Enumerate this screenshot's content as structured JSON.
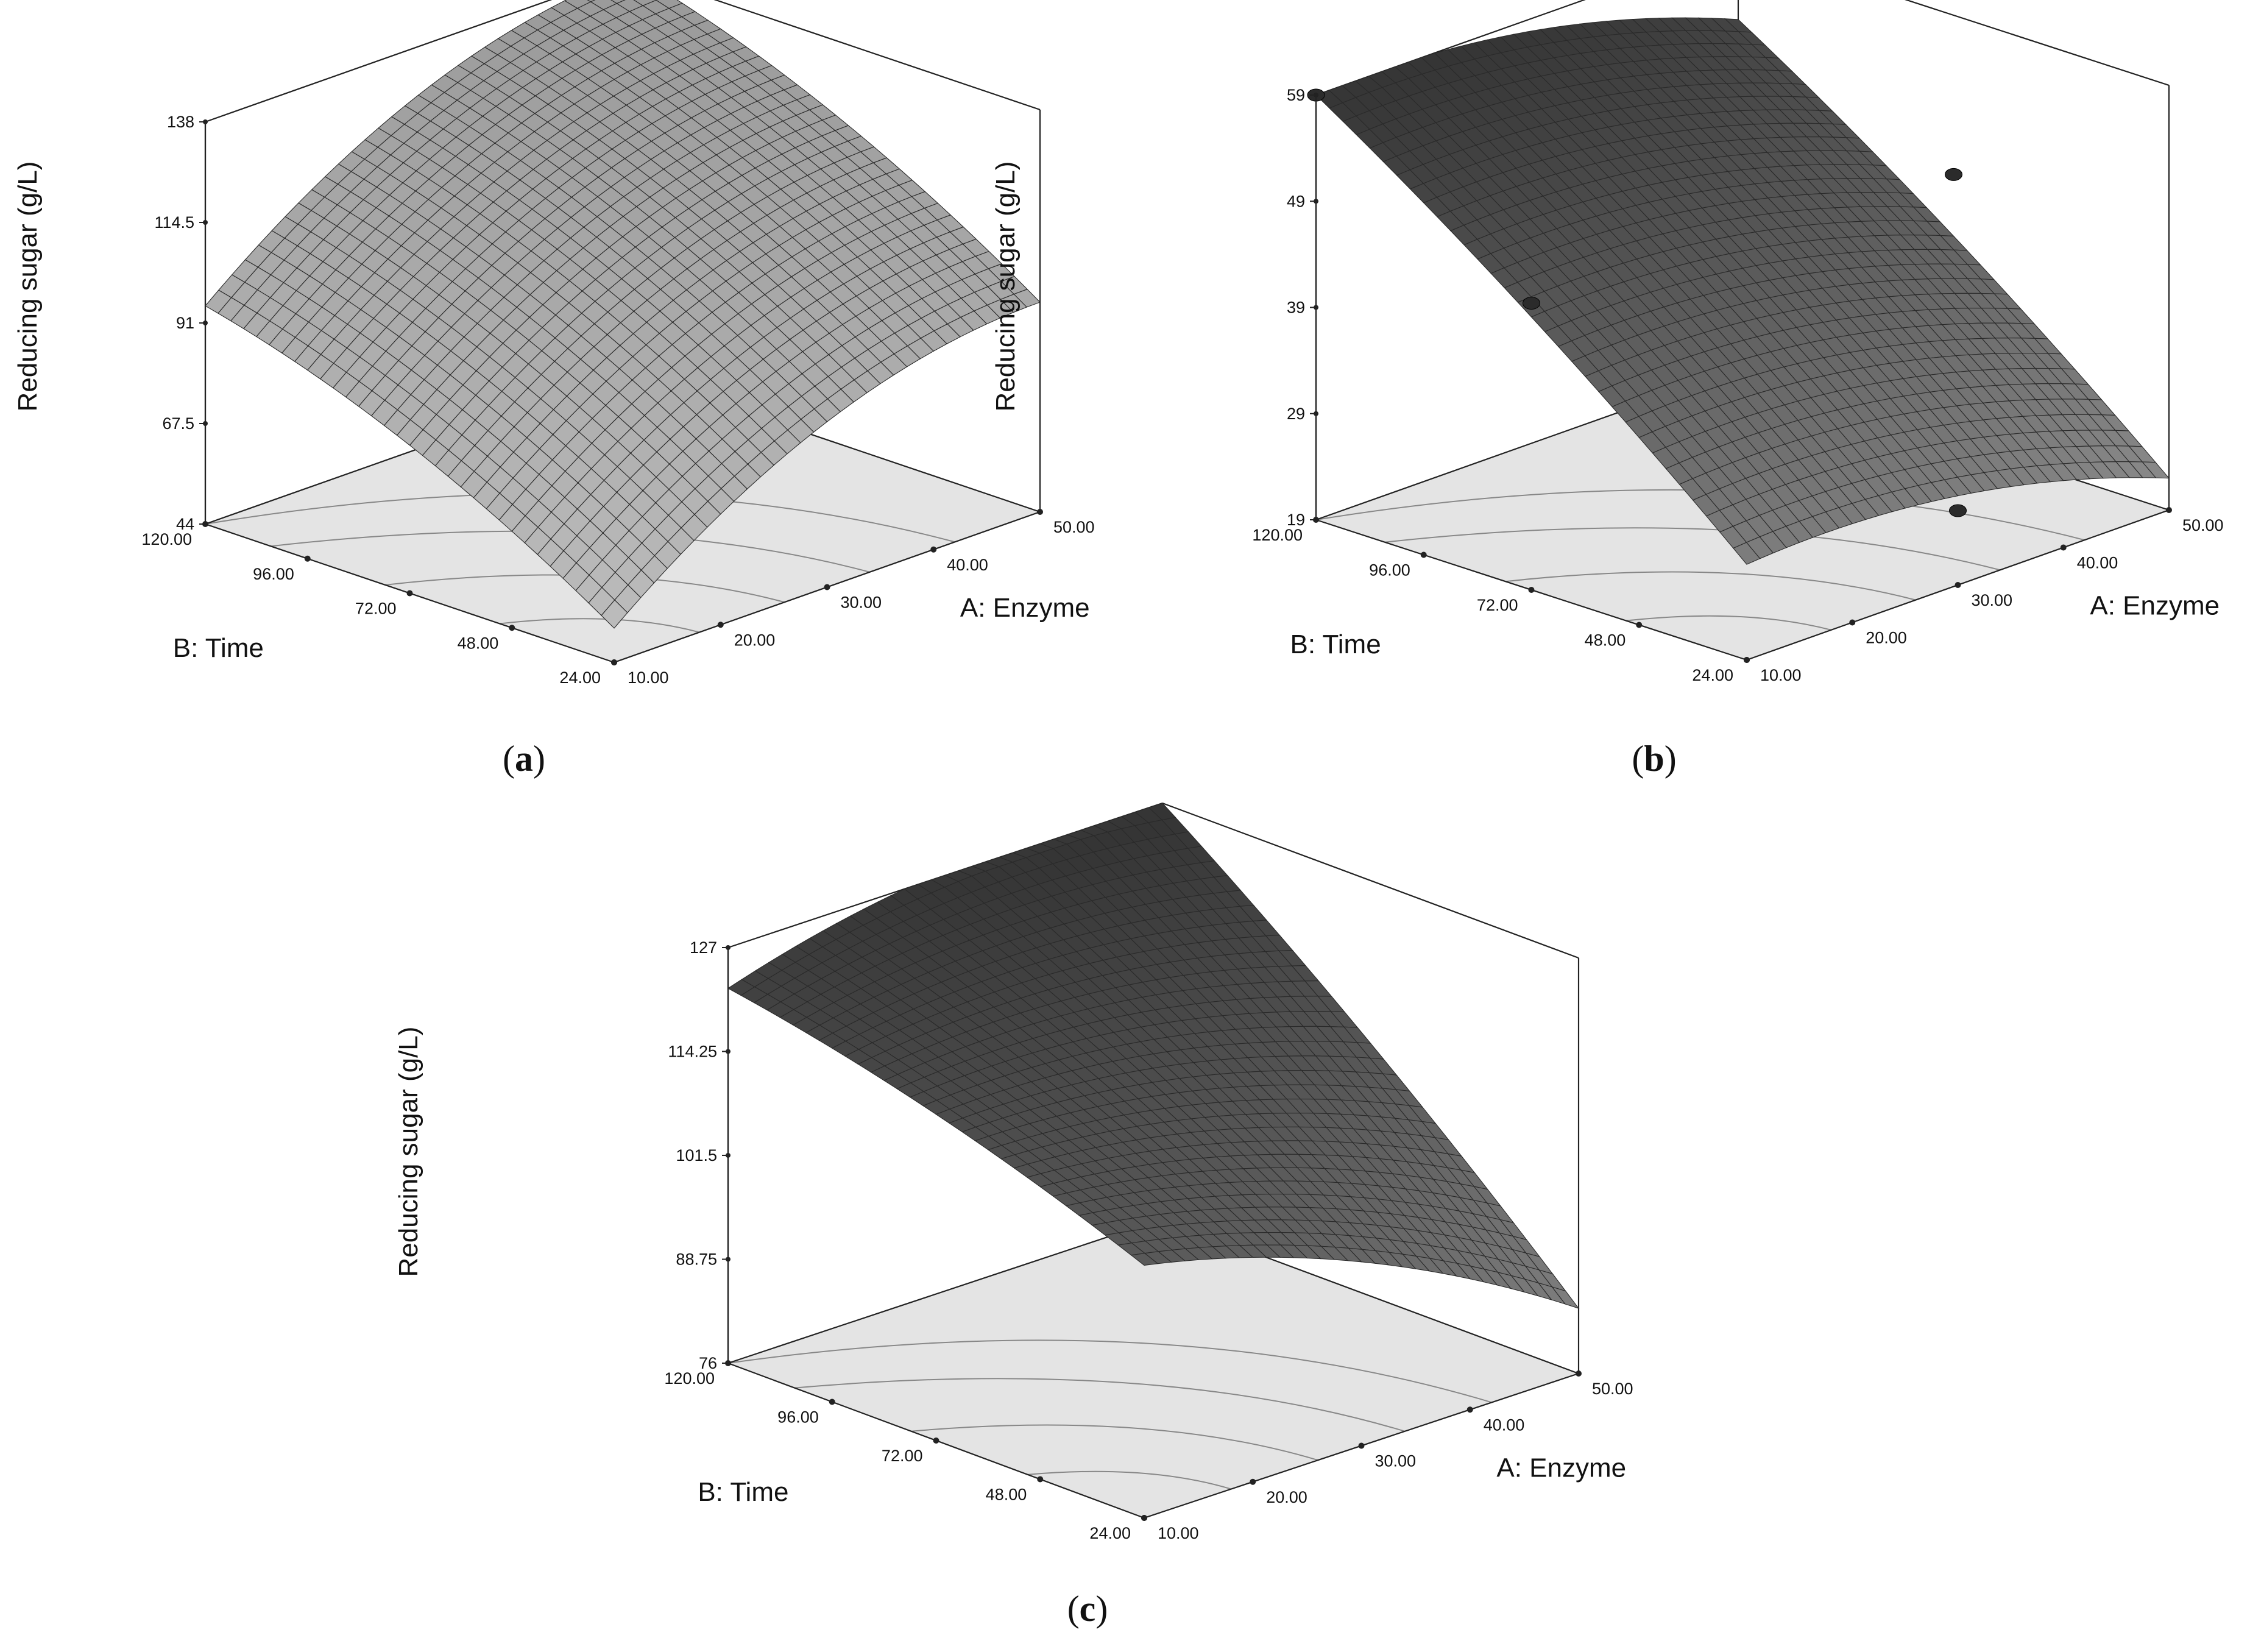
{
  "chart_data": [
    {
      "type": "surface3d",
      "panel_label": "a",
      "zlabel": "Reducing sugar (g/L)",
      "xlabel": "A: Enzyme",
      "ylabel": "B: Time",
      "x_ticks": [
        "10.00",
        "20.00",
        "30.00",
        "40.00",
        "50.00"
      ],
      "y_ticks": [
        "24.00",
        "48.00",
        "72.00",
        "96.00",
        "120.00"
      ],
      "z_ticks": [
        "44",
        "67.5",
        "91",
        "114.5",
        "138"
      ],
      "xlim": [
        10,
        50
      ],
      "ylim": [
        24,
        120
      ],
      "zlim": [
        44,
        138
      ],
      "surface_corners": {
        "x10_y24": 52,
        "x50_y24": 93,
        "x10_y120": 95,
        "x50_y120": 138
      },
      "surface_shade": "light",
      "design_points": []
    },
    {
      "type": "surface3d",
      "panel_label": "b",
      "zlabel": "Reducing sugar (g/L)",
      "xlabel": "A: Enzyme",
      "ylabel": "B: Time",
      "x_ticks": [
        "10.00",
        "20.00",
        "30.00",
        "40.00",
        "50.00"
      ],
      "y_ticks": [
        "24.00",
        "48.00",
        "72.00",
        "96.00",
        "120.00"
      ],
      "z_ticks": [
        "19",
        "29",
        "39",
        "49",
        "59"
      ],
      "xlim": [
        10,
        50
      ],
      "ylim": [
        24,
        120
      ],
      "zlim": [
        19,
        59
      ],
      "surface_corners": {
        "x10_y24": 28,
        "x50_y24": 22,
        "x10_y120": 59,
        "x50_y120": 52
      },
      "surface_shade": "dark",
      "design_points": [
        {
          "x": 10,
          "y": 120,
          "z": 59
        },
        {
          "x": 10,
          "y": 72,
          "z": 46
        },
        {
          "x": 50,
          "y": 72,
          "z": 44
        },
        {
          "x": 30,
          "y": 24,
          "z": 26
        }
      ]
    },
    {
      "type": "surface3d",
      "panel_label": "c",
      "zlabel": "Reducing sugar (g/L)",
      "xlabel": "A: Enzyme",
      "ylabel": "B: Time",
      "x_ticks": [
        "10.00",
        "20.00",
        "30.00",
        "40.00",
        "50.00"
      ],
      "y_ticks": [
        "24.00",
        "48.00",
        "72.00",
        "96.00",
        "120.00"
      ],
      "z_ticks": [
        "76",
        "88.75",
        "101.5",
        "114.25",
        "127"
      ],
      "xlim": [
        10,
        50
      ],
      "ylim": [
        24,
        120
      ],
      "zlim": [
        76,
        127
      ],
      "surface_corners": {
        "x10_y24": 107,
        "x50_y24": 84,
        "x10_y120": 122,
        "x50_y120": 127
      },
      "surface_shade": "dark",
      "design_points": []
    }
  ]
}
